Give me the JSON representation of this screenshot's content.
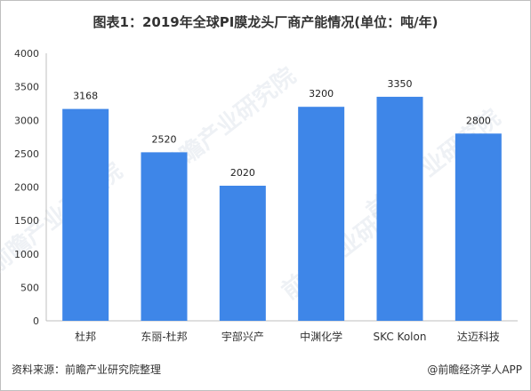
{
  "title": "图表1：2019年全球PI膜龙头厂商产能情况(单位：吨/年)",
  "source": "资料来源：前瞻产业研究院整理",
  "brand": "@前瞻经济学人APP",
  "watermark": "前瞻产业研究院",
  "colors": {
    "bar": "#3e86e8",
    "axis": "#bfbfbf"
  },
  "chart_data": {
    "type": "bar",
    "title": "图表1：2019年全球PI膜龙头厂商产能情况(单位：吨/年)",
    "categories": [
      "杜邦",
      "东丽-杜邦",
      "宇部兴产",
      "中渊化学",
      "SKC Kolon",
      "达迈科技"
    ],
    "values": [
      3168,
      2520,
      2020,
      3200,
      3350,
      2800
    ],
    "ylim": [
      0,
      4000
    ],
    "yticks": [
      0,
      500,
      1000,
      1500,
      2000,
      2500,
      3000,
      3500,
      4000
    ],
    "grid": false,
    "legend": "none"
  }
}
